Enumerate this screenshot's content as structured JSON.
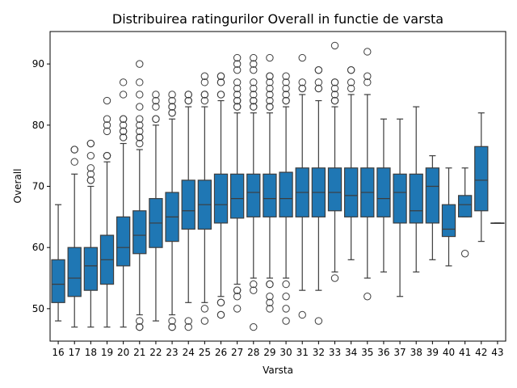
{
  "chart_data": {
    "type": "box",
    "title": "Distribuirea ratingurilor Overall in functie de varsta",
    "xlabel": "Varsta",
    "ylabel": "Overall",
    "ylim": [
      44.7,
      95.3
    ],
    "yticks": [
      50,
      60,
      70,
      80,
      90
    ],
    "grid": false,
    "categories": [
      "16",
      "17",
      "18",
      "19",
      "20",
      "21",
      "22",
      "23",
      "24",
      "25",
      "26",
      "27",
      "28",
      "29",
      "30",
      "31",
      "32",
      "33",
      "34",
      "35",
      "36",
      "37",
      "38",
      "39",
      "40",
      "41",
      "42",
      "43"
    ],
    "boxes": [
      {
        "age": "16",
        "whislo": 48,
        "q1": 51,
        "med": 54,
        "q3": 58,
        "whishi": 67,
        "fliers": []
      },
      {
        "age": "17",
        "whislo": 47,
        "q1": 52,
        "med": 55,
        "q3": 60,
        "whishi": 72,
        "fliers": [
          74,
          76,
          76
        ]
      },
      {
        "age": "18",
        "whislo": 47,
        "q1": 53,
        "med": 57,
        "q3": 60,
        "whishi": 70,
        "fliers": [
          71,
          71,
          72,
          73,
          75,
          77,
          77
        ]
      },
      {
        "age": "19",
        "whislo": 47,
        "q1": 54,
        "med": 58,
        "q3": 62,
        "whishi": 74,
        "fliers": [
          75,
          75,
          75,
          79,
          80,
          81,
          84
        ]
      },
      {
        "age": "20",
        "whislo": 47,
        "q1": 57,
        "med": 60,
        "q3": 65,
        "whishi": 77,
        "fliers": [
          78,
          78,
          79,
          79,
          80,
          81,
          81,
          85,
          87
        ]
      },
      {
        "age": "21",
        "whislo": 49,
        "q1": 59,
        "med": 62,
        "q3": 66,
        "whishi": 76,
        "fliers": [
          47,
          47,
          48,
          77,
          78,
          78,
          79,
          80,
          81,
          83,
          85,
          87,
          90
        ]
      },
      {
        "age": "22",
        "whislo": 48,
        "q1": 60,
        "med": 64,
        "q3": 68,
        "whishi": 80,
        "fliers": [
          81,
          81,
          83,
          84,
          85
        ]
      },
      {
        "age": "23",
        "whislo": 49,
        "q1": 61,
        "med": 65,
        "q3": 69,
        "whishi": 81,
        "fliers": [
          47,
          47,
          48,
          82,
          82,
          83,
          83,
          84,
          85
        ]
      },
      {
        "age": "24",
        "whislo": 51,
        "q1": 63,
        "med": 66,
        "q3": 71,
        "whishi": 83,
        "fliers": [
          47,
          48,
          84,
          84,
          85,
          85
        ]
      },
      {
        "age": "25",
        "whislo": 51,
        "q1": 63,
        "med": 67,
        "q3": 71,
        "whishi": 83,
        "fliers": [
          48,
          50,
          84,
          85,
          85,
          87,
          88
        ]
      },
      {
        "age": "26",
        "whislo": 52,
        "q1": 64,
        "med": 67,
        "q3": 72,
        "whishi": 84,
        "fliers": [
          49,
          49,
          51,
          51,
          85,
          85,
          87,
          87,
          88,
          88
        ]
      },
      {
        "age": "27",
        "whislo": 54,
        "q1": 64.8,
        "med": 68,
        "q3": 72,
        "whishi": 82,
        "fliers": [
          50,
          52,
          53,
          53,
          83,
          83,
          84,
          84,
          85,
          86,
          87,
          89,
          90,
          91
        ]
      },
      {
        "age": "28",
        "whislo": 55,
        "q1": 65,
        "med": 69,
        "q3": 72,
        "whishi": 82,
        "fliers": [
          47,
          53,
          54,
          83,
          83,
          84,
          84,
          85,
          86,
          87,
          89,
          90,
          91
        ]
      },
      {
        "age": "29",
        "whislo": 55,
        "q1": 65,
        "med": 68,
        "q3": 72,
        "whishi": 82,
        "fliers": [
          50,
          51,
          52,
          54,
          54,
          83,
          83,
          84,
          85,
          86,
          87,
          88,
          88,
          91
        ]
      },
      {
        "age": "30",
        "whislo": 55,
        "q1": 65,
        "med": 68,
        "q3": 72.3,
        "whishi": 83,
        "fliers": [
          48,
          50,
          52,
          54,
          84,
          84,
          85,
          86,
          87,
          88
        ]
      },
      {
        "age": "31",
        "whislo": 53,
        "q1": 65,
        "med": 69,
        "q3": 73,
        "whishi": 85,
        "fliers": [
          49,
          86,
          86,
          87,
          91
        ]
      },
      {
        "age": "32",
        "whislo": 53,
        "q1": 65,
        "med": 69,
        "q3": 73,
        "whishi": 84,
        "fliers": [
          48,
          86,
          86,
          87,
          89,
          89
        ]
      },
      {
        "age": "33",
        "whislo": 56,
        "q1": 66,
        "med": 69,
        "q3": 73,
        "whishi": 83,
        "fliers": [
          55,
          84,
          84,
          85,
          86,
          87,
          87,
          93
        ]
      },
      {
        "age": "34",
        "whislo": 58,
        "q1": 65,
        "med": 68.5,
        "q3": 73,
        "whishi": 85,
        "fliers": [
          86,
          87,
          89,
          89
        ]
      },
      {
        "age": "35",
        "whislo": 55,
        "q1": 65,
        "med": 69,
        "q3": 73,
        "whishi": 85,
        "fliers": [
          52,
          87,
          88,
          92
        ]
      },
      {
        "age": "36",
        "whislo": 56,
        "q1": 65,
        "med": 68,
        "q3": 73,
        "whishi": 81,
        "fliers": []
      },
      {
        "age": "37",
        "whislo": 52,
        "q1": 64,
        "med": 69,
        "q3": 72,
        "whishi": 81,
        "fliers": []
      },
      {
        "age": "38",
        "whislo": 56,
        "q1": 64,
        "med": 66,
        "q3": 72,
        "whishi": 83,
        "fliers": []
      },
      {
        "age": "39",
        "whislo": 58,
        "q1": 64,
        "med": 70,
        "q3": 73,
        "whishi": 75,
        "fliers": []
      },
      {
        "age": "40",
        "whislo": 57,
        "q1": 61.8,
        "med": 63,
        "q3": 67,
        "whishi": 73,
        "fliers": []
      },
      {
        "age": "41",
        "whislo": 65,
        "q1": 65,
        "med": 67,
        "q3": 68.5,
        "whishi": 73,
        "fliers": [
          59
        ]
      },
      {
        "age": "42",
        "whislo": 61,
        "q1": 66,
        "med": 71,
        "q3": 76.5,
        "whishi": 82,
        "fliers": []
      },
      {
        "age": "43",
        "whislo": 64,
        "q1": 64,
        "med": 64,
        "q3": 64,
        "whishi": 64,
        "fliers": []
      }
    ],
    "colors": {
      "box_fill": "#1f77b4",
      "line": "#3d3d3d",
      "axis": "#000000"
    }
  }
}
